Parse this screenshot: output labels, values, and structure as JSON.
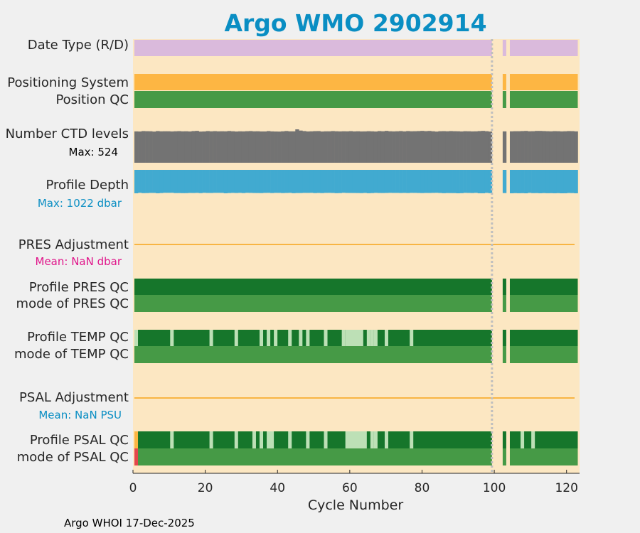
{
  "chart_data": {
    "type": "bar",
    "title": "Argo WMO 2902914",
    "xlabel": "Cycle Number",
    "xlim": [
      0,
      124
    ],
    "xticks": [
      0,
      20,
      40,
      60,
      80,
      100,
      120
    ],
    "xticklabels": [
      "0",
      "20",
      "40",
      "60",
      "80",
      "100",
      "120"
    ],
    "gap_cycles": [
      [
        100,
        103
      ],
      [
        104,
        105
      ]
    ],
    "vertical_dotted_line_at_cycle": 100,
    "rows": [
      {
        "label": "Date Type (R/D)",
        "value_class": "R (realtime) for all cycles"
      },
      {
        "label": "Positioning System"
      },
      {
        "label": "Position QC",
        "value_class": "1 for all cycles"
      },
      {
        "label": "Number CTD levels",
        "sublabel": "Max: 524",
        "max": 524
      },
      {
        "label": "Profile Depth",
        "sublabel": "Max: 1022 dbar",
        "max_dbar": 1022
      },
      {
        "label": "PRES Adjustment",
        "sublabel": "Mean:  NaN dbar"
      },
      {
        "label": "Profile PRES QC",
        "value_class": "A for all cycles"
      },
      {
        "label": "mode of PRES QC",
        "value_class": "1 for all cycles"
      },
      {
        "label": "Profile TEMP QC",
        "value_class": "A mostly, B in light segments"
      },
      {
        "label": "mode of TEMP QC",
        "value_class": "1 for all cycles"
      },
      {
        "label": "PSAL Adjustment",
        "sublabel": "Mean:  NaN PSU"
      },
      {
        "label": "Profile PSAL QC",
        "value_class": "A mostly, B in light segments, cycle 1 flagged"
      },
      {
        "label": "mode of PSAL QC",
        "value_class": "1 for all cycles, cycle 1 bad"
      }
    ],
    "temp_qc_light_cycles": [
      [
        0,
        1
      ],
      [
        10,
        11
      ],
      [
        21,
        22
      ],
      [
        28,
        29
      ],
      [
        35,
        36
      ],
      [
        37,
        38
      ],
      [
        39,
        40
      ],
      [
        43,
        44
      ],
      [
        46,
        47
      ],
      [
        48,
        49
      ],
      [
        53,
        54
      ],
      [
        58,
        59
      ],
      [
        59,
        64
      ],
      [
        65,
        66
      ],
      [
        66,
        67
      ],
      [
        67,
        68
      ],
      [
        70,
        71
      ],
      [
        77,
        78
      ]
    ],
    "psal_qc_light_cycles": [
      [
        10,
        11
      ],
      [
        21,
        22
      ],
      [
        28,
        29
      ],
      [
        33,
        34
      ],
      [
        35,
        36
      ],
      [
        37,
        39
      ],
      [
        43,
        44
      ],
      [
        48,
        49
      ],
      [
        53,
        54
      ],
      [
        59,
        65
      ],
      [
        66,
        67
      ],
      [
        67,
        68
      ],
      [
        70,
        71
      ],
      [
        77,
        78
      ],
      [
        108,
        109
      ],
      [
        111,
        112
      ]
    ],
    "psal_qc_flag_cycles": [
      [
        0,
        1
      ]
    ],
    "psal_mode_bad_cycles": [
      [
        0,
        1
      ]
    ],
    "ctd_levels": [
      492,
      490,
      497,
      495,
      494,
      489,
      497,
      493,
      494,
      494,
      491,
      494,
      496,
      493,
      494,
      491,
      497,
      500,
      489,
      491,
      497,
      493,
      496,
      493,
      494,
      493,
      498,
      494,
      490,
      493,
      492,
      495,
      497,
      493,
      494,
      491,
      491,
      497,
      492,
      490,
      489,
      493,
      498,
      493,
      493,
      524,
      505,
      497,
      491,
      493,
      496,
      497,
      490,
      493,
      493,
      497,
      494,
      492,
      494,
      493,
      496,
      492,
      494,
      491,
      492,
      495,
      493,
      490,
      497,
      494,
      500,
      494,
      492,
      494,
      497,
      492,
      497,
      494,
      495,
      497,
      500,
      496,
      499,
      494,
      489,
      495,
      496,
      494,
      497,
      495,
      494,
      491,
      495,
      494,
      492,
      493,
      497,
      500,
      495,
      489,
      0,
      0,
      0,
      492,
      0,
      493,
      495,
      495,
      497,
      499,
      494,
      495,
      499,
      499,
      497,
      495,
      493,
      496,
      495,
      492,
      494,
      497,
      496,
      492
    ],
    "profile_depth": [
      1022,
      1000,
      1015,
      1012,
      1005,
      1006,
      1020,
      1011,
      1000,
      1001,
      999,
      1012,
      1011,
      1015,
      1014,
      1007,
      1009,
      1004,
      1014,
      1001,
      1007,
      1008,
      1002,
      1002,
      1004,
      1020,
      1010,
      1004,
      1009,
      1003,
      1012,
      1001,
      1004,
      1009,
      1010,
      1013,
      1004,
      1002,
      1011,
      1003,
      1004,
      1012,
      1007,
      1002,
      1017,
      1010,
      1010,
      1004,
      1005,
      1002,
      1013,
      1007,
      1013,
      1004,
      1003,
      1007,
      1016,
      1012,
      1000,
      1007,
      1008,
      1009,
      1011,
      1014,
      1006,
      1018,
      1012,
      1003,
      1009,
      1010,
      1007,
      1002,
      1005,
      1005,
      1009,
      1005,
      1010,
      1003,
      1004,
      1008,
      1012,
      1007,
      1008,
      1004,
      1001,
      1008,
      1017,
      1011,
      1012,
      1013,
      1020,
      1016,
      1003,
      1007,
      1011,
      1003,
      1020,
      1021,
      1004,
      1017,
      0,
      0,
      0,
      1012,
      0,
      1021,
      1015,
      1019,
      1016,
      1022,
      1004,
      1015,
      1013,
      1019,
      1013,
      1018,
      1016,
      1020,
      1015,
      1022,
      1020,
      1009,
      1013,
      1021
    ],
    "footer": "Argo WHOI 17-Dec-2025",
    "colors": {
      "background_panel": "#fce7c2",
      "figure_background": "#f0f0f0",
      "title": "#0a8ec3",
      "date_type": "#dabadc",
      "positioning": "#fdb643",
      "qc_good": "#469a46",
      "qc_a": "#16762b",
      "qc_b": "#bde0b6",
      "ctd": "#737373",
      "depth": "#41aad0",
      "adjustment_line": "#f8b543",
      "pres_mean_text": "#e0158a",
      "psal_mean_text": "#0a8ec3",
      "depth_max_text": "#0a8ec3",
      "bad": "#e4474b",
      "flag_orange": "#fdb643",
      "dotted": "#bfbfbf"
    }
  }
}
